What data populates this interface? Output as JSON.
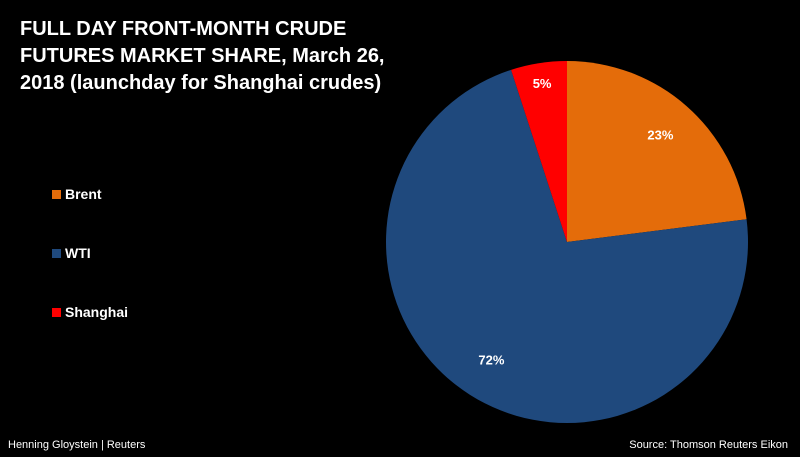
{
  "chart_data": {
    "type": "pie",
    "title_lines": [
      "FULL DAY FRONT-MONTH CRUDE",
      "FUTURES MARKET SHARE, March 26,",
      "2018 (launchday for Shanghai crudes)"
    ],
    "slices": [
      {
        "name": "Brent",
        "value": 23,
        "label": "23%",
        "color": "#E46C0A"
      },
      {
        "name": "WTI",
        "value": 72,
        "label": "72%",
        "color": "#1F497D"
      },
      {
        "name": "Shanghai",
        "value": 5,
        "label": "5%",
        "color": "#FF0000"
      }
    ],
    "legend_position": "left"
  },
  "footer": {
    "credit": "Henning Gloystein | Reuters",
    "source": "Source: Thomson Reuters Eikon"
  }
}
